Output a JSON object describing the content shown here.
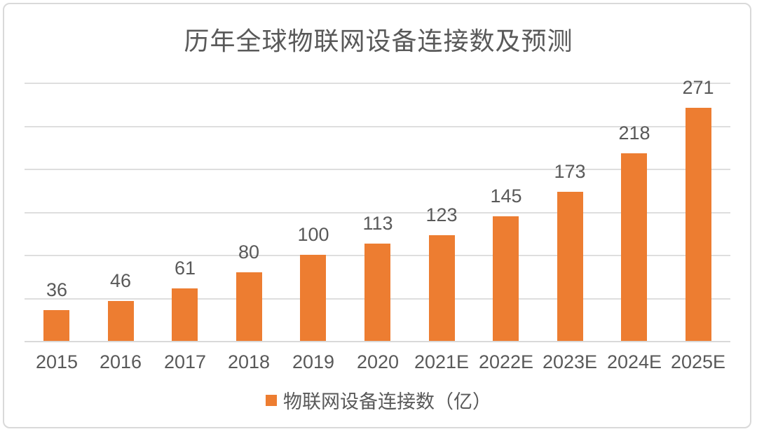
{
  "chart": {
    "colors": {
      "bar": "#ED7D31",
      "text": "#595959",
      "grid": "#DEDEDE",
      "frame_border": "#D9D9D9"
    }
  },
  "chart_data": {
    "type": "bar",
    "title": "历年全球物联网设备连接数及预测",
    "categories": [
      "2015",
      "2016",
      "2017",
      "2018",
      "2019",
      "2020",
      "2021E",
      "2022E",
      "2023E",
      "2024E",
      "2025E"
    ],
    "values": [
      36,
      46,
      61,
      80,
      100,
      113,
      123,
      145,
      173,
      218,
      271
    ],
    "xlabel": "",
    "ylabel": "",
    "ylim": [
      0,
      300
    ],
    "grid_step": 50,
    "grid": "on",
    "y_tick_labels_visible": false,
    "data_labels": true,
    "legend": [
      "物联网设备连接数（亿）"
    ],
    "legend_position": "bottom"
  }
}
